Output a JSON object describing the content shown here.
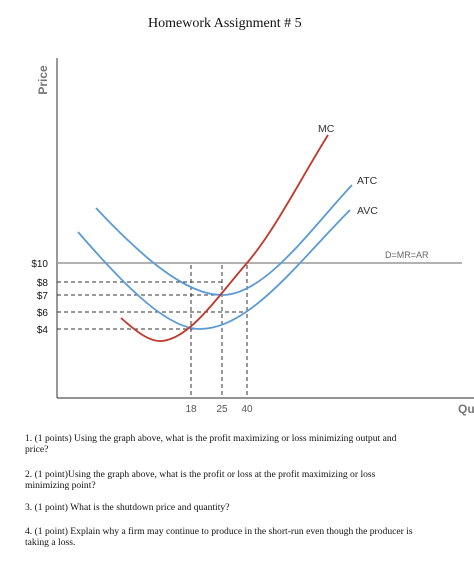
{
  "header": {
    "title": "Homework Assignment # 5"
  },
  "graph": {
    "y_axis_label": "Price",
    "x_axis_label": "Qu",
    "price_ticks": [
      "$10",
      "$8",
      "$7",
      "$6",
      "$4"
    ],
    "quantity_ticks": [
      "18",
      "25",
      "40"
    ],
    "curves": {
      "mc": "MC",
      "atc": "ATC",
      "avc": "AVC",
      "demand": "D=MR=AR"
    }
  },
  "questions": [
    "1. (1 points) Using the graph above, what is the profit maximizing or loss minimizing output and price?",
    "2. (1 point)Using the graph above, what is the profit or loss at the profit maximizing or loss minimizing point?",
    "3. (1 point) What is the shutdown price and quantity?",
    "4. (1 point) Explain why a firm may continue to produce in the short-run even though the producer is taking a loss."
  ]
}
